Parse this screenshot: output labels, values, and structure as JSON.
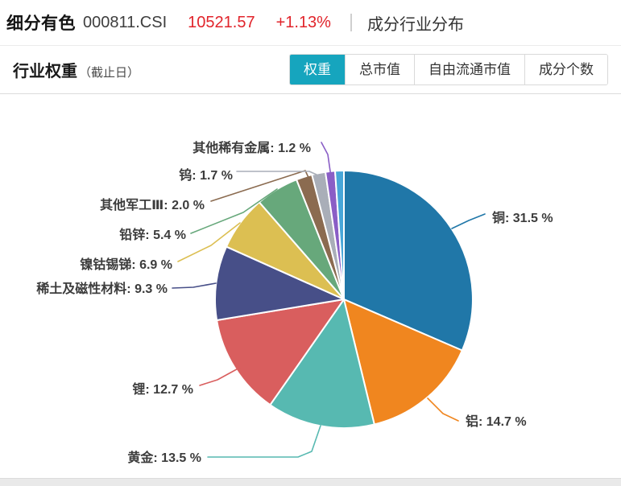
{
  "header": {
    "index_name": "细分有色",
    "index_code": "000811.CSI",
    "index_value": "10521.57",
    "index_change": "+1.13%",
    "section_title": "成分行业分布"
  },
  "panel": {
    "title": "行业权重",
    "subtitle": "（截止日）",
    "tabs": [
      {
        "label": "权重",
        "selected": true
      },
      {
        "label": "总市值",
        "selected": false
      },
      {
        "label": "自由流通市值",
        "selected": false
      },
      {
        "label": "成分个数",
        "selected": false
      }
    ]
  },
  "colors": {
    "accent_teal": "#16a5be",
    "quote_red": "#e1242b",
    "label_text": "#3c3c3c"
  },
  "chart_data": {
    "type": "pie",
    "title": "行业权重（截止日）",
    "unit": "%",
    "label_format": "{name}: {value} %",
    "start_angle": "12-oclock",
    "direction": "clockwise",
    "legend_position": "none",
    "slices": [
      {
        "name": "铜",
        "value": 31.5,
        "color": "#2077a8",
        "labeled": true
      },
      {
        "name": "铝",
        "value": 14.7,
        "color": "#f0861f",
        "labeled": true
      },
      {
        "name": "黄金",
        "value": 13.5,
        "color": "#57b9b1",
        "labeled": true
      },
      {
        "name": "锂",
        "value": 12.7,
        "color": "#d95e5e",
        "labeled": true
      },
      {
        "name": "稀土及磁性材料",
        "value": 9.3,
        "color": "#474f88",
        "labeled": true
      },
      {
        "name": "镍钴锡锑",
        "value": 6.9,
        "color": "#dcbf52",
        "labeled": true
      },
      {
        "name": "铅锌",
        "value": 5.4,
        "color": "#67a87b",
        "labeled": true
      },
      {
        "name": "其他军工Ⅲ",
        "value": 2.0,
        "color": "#8b6b50",
        "labeled": true
      },
      {
        "name": "钨",
        "value": 1.7,
        "color": "#a9aeb8",
        "labeled": true
      },
      {
        "name": "其他稀有金属",
        "value": 1.2,
        "color": "#8a5ec6",
        "labeled": true
      },
      {
        "name": "",
        "value": 1.1,
        "color": "#48a6d8",
        "labeled": false
      }
    ]
  }
}
